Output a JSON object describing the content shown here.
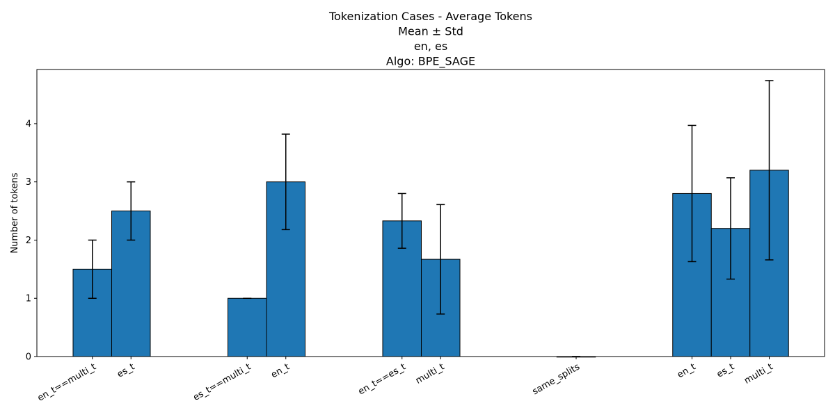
{
  "chart_data": {
    "type": "bar",
    "title_lines": [
      "Tokenization Cases - Average Tokens",
      "Mean ± Std",
      "en, es",
      "Algo: BPE_SAGE"
    ],
    "xlabel": "",
    "ylabel": "Number of tokens",
    "ylim": [
      0,
      4.93
    ],
    "yticks": [
      0,
      1,
      2,
      3,
      4
    ],
    "grid": false,
    "bar_color": "#1f77b4",
    "edge_color": "#000000",
    "groups": [
      {
        "bars": [
          {
            "label": "en_t==multi_t",
            "mean": 1.5,
            "std": 0.5
          },
          {
            "label": "es_t",
            "mean": 2.5,
            "std": 0.5
          }
        ]
      },
      {
        "bars": [
          {
            "label": "es_t==multi_t",
            "mean": 1.0,
            "std": 0.0
          },
          {
            "label": "en_t",
            "mean": 3.0,
            "std": 0.82
          }
        ]
      },
      {
        "bars": [
          {
            "label": "en_t==es_t",
            "mean": 2.33,
            "std": 0.47
          },
          {
            "label": "multi_t",
            "mean": 1.67,
            "std": 0.94
          }
        ]
      },
      {
        "bars": [
          {
            "label": "same_splits",
            "mean": 0.0,
            "std": 0.0
          }
        ]
      },
      {
        "bars": [
          {
            "label": "en_t",
            "mean": 2.8,
            "std": 1.17
          },
          {
            "label": "es_t",
            "mean": 2.2,
            "std": 0.87
          },
          {
            "label": "multi_t",
            "mean": 3.2,
            "std": 1.54
          }
        ]
      }
    ]
  }
}
